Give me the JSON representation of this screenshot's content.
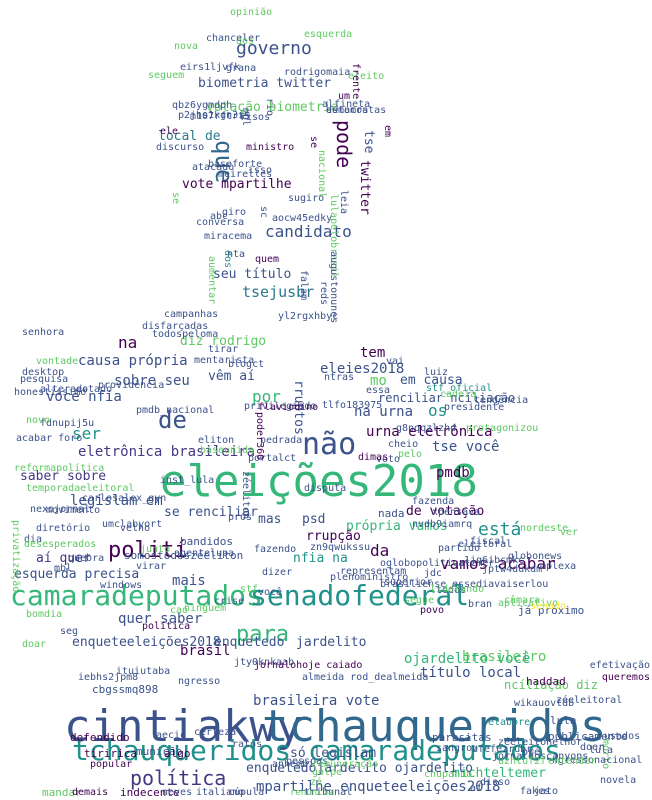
{
  "palette": [
    "#3b528b",
    "#440154",
    "#21918c",
    "#35b779",
    "#5ec962",
    "#90d743",
    "#fde725",
    "#31688e",
    "#2a788e",
    "#443983"
  ],
  "words": [
    {
      "text": "eleições2018",
      "color": "#35b779"
    },
    {
      "text": "cintiakwy",
      "color": "#3b528b"
    },
    {
      "text": "tchauqueridos",
      "color": "#31688e"
    },
    {
      "text": "tchauqueridos camaradeputados",
      "color": "#21918c"
    },
    {
      "text": "camaradeputados",
      "color": "#35b779"
    },
    {
      "text": "senadofederal",
      "color": "#21918c"
    },
    {
      "text": "política",
      "color": "#443983"
    },
    {
      "text": "polití",
      "color": "#440154"
    },
    {
      "text": "não",
      "color": "#3b528b"
    },
    {
      "text": "de",
      "color": "#3b528b"
    },
    {
      "text": "para",
      "color": "#35b779"
    },
    {
      "text": "que",
      "color": "#31688e"
    },
    {
      "text": "pode",
      "color": "#440154"
    },
    {
      "text": "governo",
      "color": "#3b528b"
    },
    {
      "text": "candidato",
      "color": "#3b528b"
    },
    {
      "text": "tsejusbr",
      "color": "#2a788e"
    },
    {
      "text": "está",
      "color": "#21918c"
    },
    {
      "text": "vamos acabar",
      "color": "#440154"
    },
    {
      "text": "da",
      "color": "#440154"
    },
    {
      "text": "brasileiro",
      "color": "#5ec962"
    },
    {
      "text": "ojardelito você",
      "color": "#35b779"
    },
    {
      "text": "título local",
      "color": "#3b528b"
    },
    {
      "text": "brasil",
      "color": "#440154"
    },
    {
      "text": "mais",
      "color": "#3b528b"
    },
    {
      "text": "quer saber",
      "color": "#3b528b"
    },
    {
      "text": "brasileira vote",
      "color": "#3b528b"
    },
    {
      "text": "mpartilhe enqueteeleições2018",
      "color": "#3b528b"
    },
    {
      "text": "michteltemer",
      "color": "#35b779"
    },
    {
      "text": "só legislam",
      "color": "#3b528b"
    },
    {
      "text": "biometria twitter",
      "color": "#3b528b"
    },
    {
      "text": "votação biometria",
      "color": "#5ec962"
    },
    {
      "text": "local de",
      "color": "#2a788e"
    },
    {
      "text": "vote mpartilhe",
      "color": "#440154"
    },
    {
      "text": "seu título",
      "color": "#3b528b"
    },
    {
      "text": "twitter",
      "color": "#440154"
    },
    {
      "text": "tse",
      "color": "#3b528b"
    },
    {
      "text": "eletrônica brasileira",
      "color": "#443983"
    },
    {
      "text": "legislam em",
      "color": "#3b528b"
    },
    {
      "text": "causa própria",
      "color": "#3b528b"
    },
    {
      "text": "sobre seu",
      "color": "#3b528b"
    },
    {
      "text": "você nfia",
      "color": "#3b528b"
    },
    {
      "text": "urna eletrônica",
      "color": "#440154"
    },
    {
      "text": "tse você",
      "color": "#3b528b"
    },
    {
      "text": "na urna",
      "color": "#3b528b"
    },
    {
      "text": "eleies2018",
      "color": "#3b528b"
    },
    {
      "text": "por",
      "color": "#35b779"
    },
    {
      "text": "ser",
      "color": "#21918c"
    },
    {
      "text": "em causa",
      "color": "#3b528b"
    },
    {
      "text": "os",
      "color": "#21918c"
    },
    {
      "text": "pmdb",
      "color": "#440154"
    },
    {
      "text": "tem",
      "color": "#440154"
    },
    {
      "text": "mo",
      "color": "#5ec962"
    },
    {
      "text": "na",
      "color": "#440154"
    },
    {
      "text": "diz rodrigo",
      "color": "#5ec962"
    },
    {
      "text": "vêm aí",
      "color": "#3b528b"
    },
    {
      "text": "saber sobre",
      "color": "#443983"
    },
    {
      "text": "aí quer",
      "color": "#443983"
    },
    {
      "text": "esquerda precisa",
      "color": "#3b528b"
    },
    {
      "text": "enqueteeleições2018",
      "color": "#3b528b"
    },
    {
      "text": "enquetedo",
      "color": "#3b528b"
    },
    {
      "text": "jardelito",
      "color": "#3b528b"
    },
    {
      "text": "própria vamos",
      "color": "#35b779"
    },
    {
      "text": "de votação",
      "color": "#440154"
    },
    {
      "text": "nfia na",
      "color": "#21918c"
    },
    {
      "text": "rrupção",
      "color": "#440154"
    },
    {
      "text": "mas",
      "color": "#3b528b"
    },
    {
      "text": "psd",
      "color": "#3b528b"
    },
    {
      "text": "se renciliar",
      "color": "#3b528b"
    },
    {
      "text": "rruptos",
      "color": "#3b528b"
    },
    {
      "text": "renciliar ncíliação",
      "color": "#3b528b"
    },
    {
      "text": "ncíliação diz",
      "color": "#5ec962"
    },
    {
      "text": "defendido",
      "color": "#440154"
    },
    {
      "text": "munição",
      "color": "#3b528b"
    },
    {
      "text": "algo",
      "color": "#440154"
    },
    {
      "text": "já próximo",
      "color": "#3b528b"
    },
    {
      "text": "parasitas",
      "color": "#3b528b"
    },
    {
      "text": "haddad",
      "color": "#440154"
    },
    {
      "text": "publicamente",
      "color": "#3b528b"
    },
    {
      "text": "lula",
      "color": "#3b528b"
    },
    {
      "text": "chupando",
      "color": "#5ec962"
    },
    {
      "text": "jornaldoscanyons",
      "color": "#3b528b"
    },
    {
      "text": "enquetedojardelito ojardelito",
      "color": "#3b528b"
    },
    {
      "text": "popular",
      "color": "#440154"
    },
    {
      "text": "indecente",
      "color": "#440154"
    },
    {
      "text": "mandar",
      "color": "#5ec962"
    },
    {
      "text": "demais",
      "color": "#440154"
    },
    {
      "text": "cúpula",
      "color": "#3b528b"
    },
    {
      "text": "fakes",
      "color": "#3b528b"
    },
    {
      "text": "jato",
      "color": "#3b528b"
    },
    {
      "text": "doer",
      "color": "#3b528b"
    },
    {
      "text": "novela",
      "color": "#3b528b"
    },
    {
      "text": "usados",
      "color": "#3b528b"
    },
    {
      "text": "morto",
      "color": "#5ec962"
    },
    {
      "text": "lula",
      "color": "#3b528b"
    },
    {
      "text": "elabore",
      "color": "#21918c"
    },
    {
      "text": "efetivação",
      "color": "#3b528b"
    },
    {
      "text": "queremos",
      "color": "#440154"
    },
    {
      "text": "nada",
      "color": "#3b528b"
    },
    {
      "text": "bandidos",
      "color": "#3b528b"
    },
    {
      "text": "tiririca",
      "color": "#440154"
    },
    {
      "text": "cbgssmq898",
      "color": "#3b528b"
    },
    {
      "text": "iebhs2jpm8",
      "color": "#3b528b"
    },
    {
      "text": "umclabyort",
      "color": "#3b528b"
    },
    {
      "text": "temporadaeleitoral",
      "color": "#5ec962"
    },
    {
      "text": "carlosalex_gyn",
      "color": "#3b528b"
    },
    {
      "text": "reformapolítica",
      "color": "#5ec962"
    },
    {
      "text": "fdnupij5u",
      "color": "#3b528b"
    },
    {
      "text": "pmdb_nacional",
      "color": "#3b528b"
    },
    {
      "text": "privilegiado",
      "color": "#3b528b"
    },
    {
      "text": "flaviodino",
      "color": "#440154"
    },
    {
      "text": "eliton",
      "color": "#3b528b"
    },
    {
      "text": "pedrada",
      "color": "#3b528b"
    },
    {
      "text": "g8pqqzlzhd",
      "color": "#3b528b"
    },
    {
      "text": "protagonizou",
      "color": "#5ec962"
    },
    {
      "text": "jptw4dukdm",
      "color": "#3b528b"
    },
    {
      "text": "1jq6ibcmkc",
      "color": "#3b528b"
    },
    {
      "text": "globonews",
      "color": "#3b528b"
    },
    {
      "text": "partido",
      "color": "#3b528b"
    },
    {
      "text": "fiscal",
      "color": "#3b528b"
    },
    {
      "text": "essediavaiserlou",
      "color": "#3b528b"
    },
    {
      "text": "zéeleitoral",
      "color": "#3b528b"
    },
    {
      "text": "wikauovtdb",
      "color": "#3b528b"
    },
    {
      "text": "zfefezrubr",
      "color": "#3b528b"
    },
    {
      "text": "zéeleitonelhor",
      "color": "#3b528b"
    },
    {
      "text": "ngressonacional",
      "color": "#3b528b"
    },
    {
      "text": "uzhluf2f",
      "color": "#5ec962"
    },
    {
      "text": "xpensava",
      "color": "#3b528b"
    },
    {
      "text": "nvdb9iamrq",
      "color": "#3b528b"
    },
    {
      "text": "fazenda",
      "color": "#3b528b"
    },
    {
      "text": "somostodoszéeliton",
      "color": "#3b528b"
    },
    {
      "text": "jty0knkaab",
      "color": "#3b528b"
    },
    {
      "text": "jornalohoje caiado",
      "color": "#440154"
    },
    {
      "text": "almeida rod_dealmeida",
      "color": "#3b528b"
    },
    {
      "text": "oglobopoliticatemer",
      "color": "#3b528b"
    },
    {
      "text": "representam",
      "color": "#3b528b"
    },
    {
      "text": "superior",
      "color": "#3b528b"
    },
    {
      "text": "plenoministro",
      "color": "#3b528b"
    },
    {
      "text": "jdc",
      "color": "#3b528b"
    },
    {
      "text": "povo",
      "color": "#440154"
    },
    {
      "text": "eleitoral",
      "color": "#3b528b"
    },
    {
      "text": "vai",
      "color": "#3b528b"
    },
    {
      "text": "ntras",
      "color": "#3b528b"
    },
    {
      "text": "presidente",
      "color": "#3b528b"
    },
    {
      "text": "tendência",
      "color": "#3b528b"
    },
    {
      "text": "cadeia",
      "color": "#5ec962"
    },
    {
      "text": "stf_oficial",
      "color": "#21918c"
    },
    {
      "text": "essa",
      "color": "#3b528b"
    },
    {
      "text": "luiz",
      "color": "#3b528b"
    },
    {
      "text": "tlfo183975",
      "color": "#3b528b"
    },
    {
      "text": "pelo",
      "color": "#5ec962"
    },
    {
      "text": "cheio",
      "color": "#3b528b"
    },
    {
      "text": "voto",
      "color": "#3b528b"
    },
    {
      "text": "dimas",
      "color": "#440154"
    },
    {
      "text": "baseunida",
      "color": "#5ec962"
    },
    {
      "text": "portalct",
      "color": "#3b528b"
    },
    {
      "text": "inst_lula",
      "color": "#3b528b"
    },
    {
      "text": "disputa",
      "color": "#3b528b"
    },
    {
      "text": "zn9qwukssu",
      "color": "#3b528b"
    },
    {
      "text": "fazendo",
      "color": "#3b528b"
    },
    {
      "text": "ituiutaba",
      "color": "#3b528b"
    },
    {
      "text": "ngresso",
      "color": "#3b528b"
    },
    {
      "text": "ratos",
      "color": "#3b528b"
    },
    {
      "text": "aecio",
      "color": "#3b528b"
    },
    {
      "text": "certeza",
      "color": "#3b528b"
    },
    {
      "text": "pessoas",
      "color": "#3b528b"
    },
    {
      "text": "golpe",
      "color": "#5ec962"
    },
    {
      "text": "zé",
      "color": "#5ec962"
    },
    {
      "text": "neves",
      "color": "#3b528b"
    },
    {
      "text": "italiano",
      "color": "#3b528b"
    },
    {
      "text": "tribunal",
      "color": "#3b528b"
    },
    {
      "text": "renúncia",
      "color": "#5ec962"
    },
    {
      "text": "remuneração",
      "color": "#5ec962"
    },
    {
      "text": "anhembi",
      "color": "#3b528b"
    },
    {
      "text": "brasiliense",
      "color": "#3b528b"
    },
    {
      "text": "dizer",
      "color": "#3b528b"
    },
    {
      "text": "política",
      "color": "#440154"
    },
    {
      "text": "velho",
      "color": "#3b528b"
    },
    {
      "text": "agentelupa",
      "color": "#3b528b"
    },
    {
      "text": "prós",
      "color": "#3b528b"
    },
    {
      "text": "zéeliton",
      "color": "#3b528b"
    },
    {
      "text": "poder360",
      "color": "#440154"
    },
    {
      "text": "blogct",
      "color": "#3b528b"
    },
    {
      "text": "senhora",
      "color": "#3b528b"
    },
    {
      "text": "pesquisa",
      "color": "#3b528b"
    },
    {
      "text": "desktop",
      "color": "#3b528b"
    },
    {
      "text": "honestissimo",
      "color": "#3b528b"
    },
    {
      "text": "alterado",
      "color": "#3b528b"
    },
    {
      "text": "estado",
      "color": "#3b528b"
    },
    {
      "text": "providência",
      "color": "#3b528b"
    },
    {
      "text": "vontade",
      "color": "#5ec962"
    },
    {
      "text": "tirar",
      "color": "#3b528b"
    },
    {
      "text": "mentarista",
      "color": "#3b528b"
    },
    {
      "text": "disfarçadas",
      "color": "#3b528b"
    },
    {
      "text": "todospeloma",
      "color": "#3b528b"
    },
    {
      "text": "campanhas",
      "color": "#3b528b"
    },
    {
      "text": "yl2rgxhbyc",
      "color": "#3b528b"
    },
    {
      "text": "nta",
      "color": "#3b528b"
    },
    {
      "text": "quem",
      "color": "#440154"
    },
    {
      "text": "miracema",
      "color": "#3b528b"
    },
    {
      "text": "giro",
      "color": "#3b528b"
    },
    {
      "text": "sc",
      "color": "#3b528b"
    },
    {
      "text": "aocw45edky",
      "color": "#3b528b"
    },
    {
      "text": "sugiro",
      "color": "#3b528b"
    },
    {
      "text": "isso",
      "color": "#3b528b"
    },
    {
      "text": "meirelles",
      "color": "#3b528b"
    },
    {
      "text": "atacado",
      "color": "#3b528b"
    },
    {
      "text": "ministro",
      "color": "#440154"
    },
    {
      "text": "ele",
      "color": "#440154"
    },
    {
      "text": "risos",
      "color": "#3b528b"
    },
    {
      "text": "alfineta",
      "color": "#3b528b"
    },
    {
      "text": "m107rftrt5",
      "color": "#3b528b"
    },
    {
      "text": "qbz6ygmdph",
      "color": "#3b528b"
    },
    {
      "text": "p2jhs1kgn3i",
      "color": "#3b528b"
    },
    {
      "text": "mbl",
      "color": "#3b528b"
    },
    {
      "text": "democratas",
      "color": "#3b528b"
    },
    {
      "text": "estamos",
      "color": "#3b528b"
    },
    {
      "text": "um",
      "color": "#440154"
    },
    {
      "text": "rodrigomaia",
      "color": "#3b528b"
    },
    {
      "text": "seguem",
      "color": "#5ec962"
    },
    {
      "text": "eleito",
      "color": "#5ec962"
    },
    {
      "text": "grana",
      "color": "#3b528b"
    },
    {
      "text": "eirs1ljvfk",
      "color": "#3b528b"
    },
    {
      "text": "nova",
      "color": "#5ec962"
    },
    {
      "text": "dos",
      "color": "#5ec962"
    },
    {
      "text": "chanceler",
      "color": "#3b528b"
    },
    {
      "text": "esquerda",
      "color": "#5ec962"
    },
    {
      "text": "opinião",
      "color": "#5ec962"
    },
    {
      "text": "frente",
      "color": "#440154"
    },
    {
      "text": "baseforte",
      "color": "#3b528b"
    },
    {
      "text": "discurso",
      "color": "#3b528b"
    },
    {
      "text": "nacional",
      "color": "#5ec962"
    },
    {
      "text": "lulapelobrasil",
      "color": "#5ec962"
    },
    {
      "text": "rio",
      "color": "#3b528b"
    },
    {
      "text": "se",
      "color": "#440154"
    },
    {
      "text": "em",
      "color": "#440154"
    },
    {
      "text": "leia",
      "color": "#3b528b"
    },
    {
      "text": "falam",
      "color": "#3b528b"
    },
    {
      "text": "acabar foro",
      "color": "#3b528b"
    },
    {
      "text": "novo",
      "color": "#5ec962"
    },
    {
      "text": "nexojornal",
      "color": "#3b528b"
    },
    {
      "text": "dia",
      "color": "#3b528b"
    },
    {
      "text": "movimento",
      "color": "#3b528b"
    },
    {
      "text": "privatização",
      "color": "#5ec962"
    },
    {
      "text": "diretório",
      "color": "#3b528b"
    },
    {
      "text": "desesperados",
      "color": "#5ec962"
    },
    {
      "text": "mbl",
      "color": "#3b528b"
    },
    {
      "text": "quebra",
      "color": "#3b528b"
    },
    {
      "text": "windows",
      "color": "#3b528b"
    },
    {
      "text": "virar",
      "color": "#3b528b"
    },
    {
      "text": "bomdia",
      "color": "#5ec962"
    },
    {
      "text": "seg",
      "color": "#3b528b"
    },
    {
      "text": "doar",
      "color": "#5ec962"
    },
    {
      "text": "ninguém",
      "color": "#5ec962"
    },
    {
      "text": "stf",
      "color": "#5ec962"
    },
    {
      "text": "crise",
      "color": "#3b528b"
    },
    {
      "text": "você",
      "color": "#3b528b"
    },
    {
      "text": "segue",
      "color": "#5ec962"
    },
    {
      "text": "aplicativo",
      "color": "#5ec962"
    },
    {
      "text": "bran",
      "color": "#3b528b"
    },
    {
      "text": "todos",
      "color": "#3b528b"
    },
    {
      "text": "nordeste",
      "color": "#5ec962"
    },
    {
      "text": "liderando",
      "color": "#5ec962"
    },
    {
      "text": "cao",
      "color": "#5ec962"
    },
    {
      "text": "junto",
      "color": "#5ec962"
    },
    {
      "text": "ver",
      "color": "#5ec962"
    },
    {
      "text": "entender",
      "color": "#5ec962"
    },
    {
      "text": "pré",
      "color": "#3b528b"
    },
    {
      "text": "aí",
      "color": "#3b528b"
    },
    {
      "text": "sangrou",
      "color": "#3b528b"
    },
    {
      "text": "disso",
      "color": "#3b528b"
    },
    {
      "text": "mplexa",
      "color": "#3b528b"
    },
    {
      "text": "senado",
      "color": "#fde725"
    },
    {
      "text": "câmara",
      "color": "#5ec962"
    },
    {
      "text": "se",
      "color": "#5ec962"
    },
    {
      "text": "aumentar",
      "color": "#5ec962"
    },
    {
      "text": "dos",
      "color": "#21918c"
    },
    {
      "text": "augustonunes",
      "color": "#3b528b"
    },
    {
      "text": "reds",
      "color": "#3b528b"
    },
    {
      "text": "abc",
      "color": "#3b528b"
    },
    {
      "text": "conversa",
      "color": "#3b528b"
    }
  ]
}
